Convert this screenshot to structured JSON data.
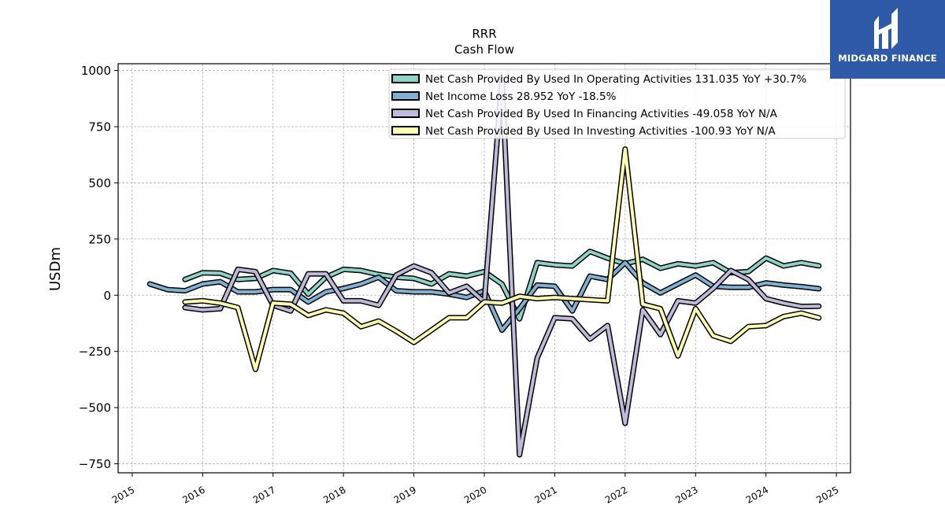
{
  "brand": {
    "name": "MIDGARD FINANCE",
    "bg_color": "#2f5aa8"
  },
  "chart_data": {
    "type": "line",
    "title": "RRR",
    "subtitle": "Cash Flow",
    "xlabel": "",
    "ylabel": "USDm",
    "xlim": [
      2014.8,
      2025.2
    ],
    "ylim": [
      -790,
      1030
    ],
    "x_ticks": [
      2015,
      2016,
      2017,
      2018,
      2019,
      2020,
      2021,
      2022,
      2023,
      2024,
      2025
    ],
    "y_ticks": [
      -750,
      -500,
      -250,
      0,
      250,
      500,
      750,
      1000
    ],
    "y_tick_labels": [
      "−750",
      "−500",
      "−250",
      "0",
      "250",
      "500",
      "750",
      "1000"
    ],
    "grid": true,
    "legend_position": "top-right",
    "series": [
      {
        "name": "Net Cash Provided By Used In Operating Activities  131.035 YoY +30.7%",
        "color": "#8dd3c7",
        "x": [
          2015.75,
          2016.0,
          2016.25,
          2016.5,
          2016.75,
          2017.0,
          2017.25,
          2017.5,
          2017.75,
          2018.0,
          2018.25,
          2018.5,
          2018.75,
          2019.0,
          2019.25,
          2019.5,
          2019.75,
          2020.0,
          2020.25,
          2020.5,
          2020.75,
          2021.0,
          2021.25,
          2021.5,
          2021.75,
          2022.0,
          2022.25,
          2022.5,
          2022.75,
          2023.0,
          2023.25,
          2023.5,
          2023.75,
          2024.0,
          2024.25,
          2024.5,
          2024.75
        ],
        "y": [
          70,
          100,
          98,
          70,
          75,
          110,
          98,
          5,
          80,
          115,
          110,
          92,
          80,
          75,
          50,
          95,
          85,
          105,
          50,
          -105,
          145,
          135,
          130,
          195,
          165,
          140,
          160,
          120,
          140,
          130,
          145,
          100,
          105,
          165,
          130,
          145,
          131
        ]
      },
      {
        "name": "Net Income Loss  28.952 YoY -18.5%",
        "color": "#80b1d3",
        "x": [
          2015.25,
          2015.5,
          2015.75,
          2016.0,
          2016.25,
          2016.5,
          2016.75,
          2017.0,
          2017.25,
          2017.5,
          2017.75,
          2018.0,
          2018.25,
          2018.5,
          2018.75,
          2019.0,
          2019.25,
          2019.5,
          2019.75,
          2020.0,
          2020.25,
          2020.5,
          2020.75,
          2021.0,
          2021.25,
          2021.5,
          2021.75,
          2022.0,
          2022.25,
          2022.5,
          2022.75,
          2023.0,
          2023.25,
          2023.5,
          2023.75,
          2024.0,
          2024.25,
          2024.5,
          2024.75
        ],
        "y": [
          50,
          25,
          20,
          50,
          60,
          15,
          15,
          25,
          25,
          -30,
          15,
          30,
          50,
          80,
          20,
          15,
          15,
          5,
          -10,
          20,
          -155,
          -60,
          45,
          40,
          -70,
          85,
          70,
          145,
          55,
          10,
          50,
          90,
          40,
          35,
          35,
          55,
          45,
          38,
          29
        ]
      },
      {
        "name": "Net Cash Provided By Used In Financing Activities  -49.058 YoY N/A",
        "color": "#bebada",
        "x": [
          2015.75,
          2016.0,
          2016.25,
          2016.5,
          2016.75,
          2017.0,
          2017.25,
          2017.5,
          2017.75,
          2018.0,
          2018.25,
          2018.5,
          2018.75,
          2019.0,
          2019.25,
          2019.5,
          2019.75,
          2020.0,
          2020.25,
          2020.5,
          2020.75,
          2021.0,
          2021.25,
          2021.5,
          2021.75,
          2022.0,
          2022.25,
          2022.5,
          2022.75,
          2023.0,
          2023.25,
          2023.5,
          2023.75,
          2024.0,
          2024.25,
          2024.5,
          2024.75
        ],
        "y": [
          -55,
          -65,
          -60,
          115,
          105,
          -45,
          -70,
          95,
          95,
          -25,
          -25,
          -45,
          90,
          130,
          100,
          10,
          40,
          -30,
          960,
          -710,
          -280,
          -100,
          -105,
          -195,
          -135,
          -570,
          -65,
          -175,
          -25,
          -35,
          30,
          110,
          70,
          -15,
          -35,
          -50,
          -49
        ]
      },
      {
        "name": "Net Cash Provided By Used In Investing Activities  -100.93 YoY N/A",
        "color": "#ffffb3",
        "x": [
          2015.75,
          2016.0,
          2016.25,
          2016.5,
          2016.75,
          2017.0,
          2017.25,
          2017.5,
          2017.75,
          2018.0,
          2018.25,
          2018.5,
          2018.75,
          2019.0,
          2019.25,
          2019.5,
          2019.75,
          2020.0,
          2020.25,
          2020.5,
          2020.75,
          2021.0,
          2021.25,
          2021.5,
          2021.75,
          2022.0,
          2022.25,
          2022.5,
          2022.75,
          2023.0,
          2023.25,
          2023.5,
          2023.75,
          2024.0,
          2024.25,
          2024.5,
          2024.75
        ],
        "y": [
          -30,
          -25,
          -35,
          -55,
          -330,
          -35,
          -40,
          -90,
          -65,
          -80,
          -140,
          -115,
          -160,
          -210,
          -155,
          -100,
          -100,
          -30,
          -35,
          -5,
          -15,
          -10,
          -15,
          -20,
          -25,
          650,
          -40,
          -60,
          -270,
          -60,
          -180,
          -205,
          -140,
          -135,
          -95,
          -80,
          -101
        ]
      }
    ]
  }
}
